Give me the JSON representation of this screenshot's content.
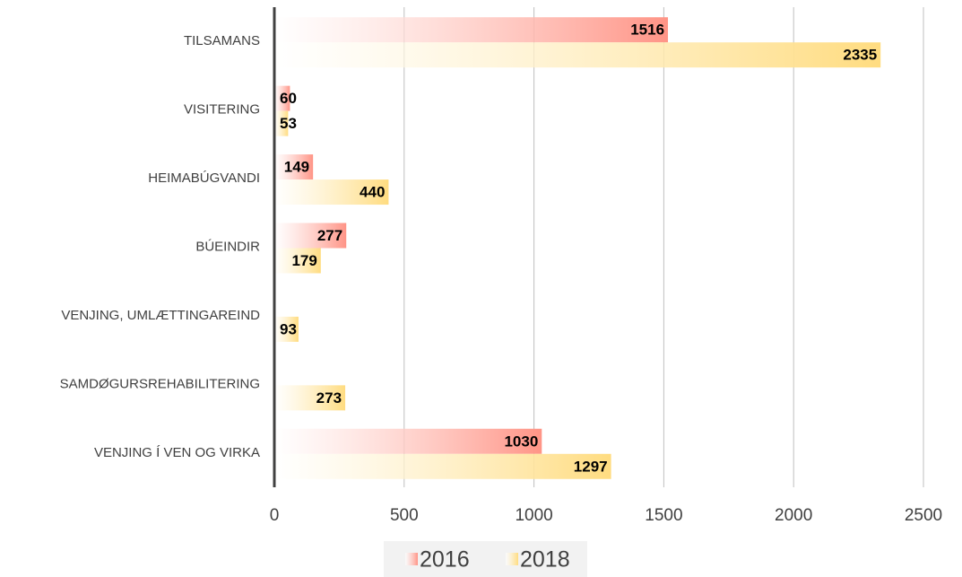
{
  "chart_data": {
    "type": "bar",
    "orientation": "horizontal",
    "categories": [
      "TILSAMANS",
      "VISITERING",
      "HEIMABÚGVANDI",
      "BÚEINDIR",
      "VENJING, UMLÆTTINGAREIND",
      "SAMDØGURSREHABILITERING",
      "VENJING Í VEN OG VIRKA"
    ],
    "series": [
      {
        "name": "2016",
        "color": "#ff9486",
        "values": [
          1516,
          60,
          149,
          277,
          null,
          null,
          1030
        ]
      },
      {
        "name": "2018",
        "color": "#ffdc80",
        "values": [
          2335,
          53,
          440,
          179,
          93,
          273,
          1297
        ]
      }
    ],
    "xlim": [
      0,
      2500
    ],
    "xticks": [
      0,
      500,
      1000,
      1500,
      2000,
      2500
    ],
    "grid": true,
    "legend": "bottom"
  }
}
